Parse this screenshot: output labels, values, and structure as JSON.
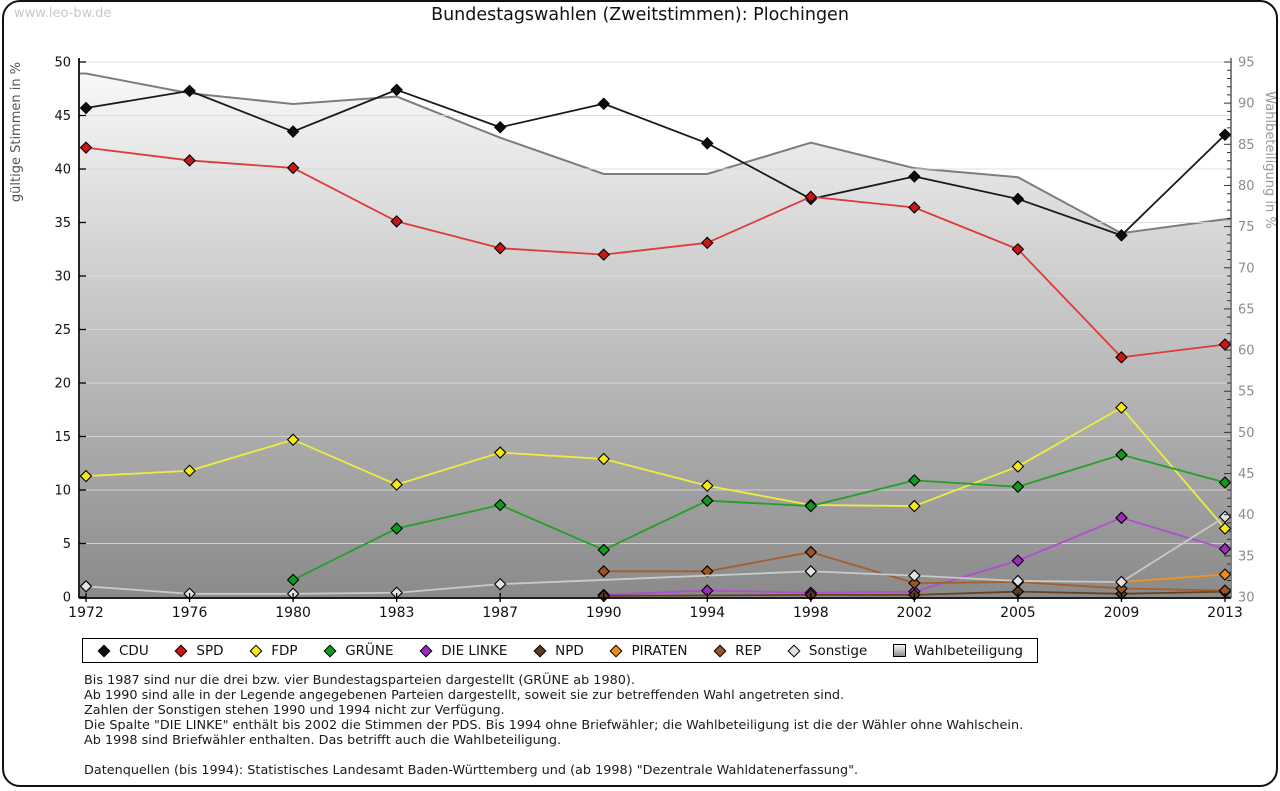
{
  "watermark": "www.leo-bw.de",
  "title": "Bundestagswahlen (Zweitstimmen): Plochingen",
  "chart_data": {
    "type": "line",
    "x": [
      1972,
      1976,
      1980,
      1983,
      1987,
      1990,
      1994,
      1998,
      2002,
      2005,
      2009,
      2013
    ],
    "y_left": {
      "label": "gültige Stimmen in %",
      "min": 0,
      "max": 50,
      "tick_step": 5
    },
    "y_right": {
      "label": "Wahlbeteiligung in %",
      "min": 30,
      "max": 95,
      "tick_step": 5,
      "minor_tick_step": 1
    },
    "grid": true,
    "series": [
      {
        "name": "CDU",
        "axis": "left",
        "style": "line",
        "color": "#1a1a1a",
        "marker": "#0d0d0d",
        "values": [
          45.7,
          47.3,
          43.5,
          47.4,
          43.9,
          46.1,
          42.4,
          37.2,
          39.3,
          37.2,
          33.8,
          43.2
        ]
      },
      {
        "name": "SPD",
        "axis": "left",
        "style": "line",
        "color": "#de3b3b",
        "marker": "#cc1616",
        "values": [
          42.0,
          40.8,
          40.1,
          35.1,
          32.6,
          32.0,
          33.1,
          37.4,
          36.4,
          32.5,
          22.4,
          23.6
        ]
      },
      {
        "name": "FDP",
        "axis": "left",
        "style": "line",
        "color": "#eded3e",
        "marker": "#f7e81c",
        "values": [
          11.3,
          11.8,
          14.7,
          10.5,
          13.5,
          12.9,
          10.4,
          8.6,
          8.5,
          12.2,
          17.7,
          6.4
        ]
      },
      {
        "name": "GRÜNE",
        "axis": "left",
        "style": "line",
        "color": "#22a122",
        "marker": "#12991f",
        "values": [
          null,
          null,
          1.6,
          6.4,
          8.6,
          4.4,
          9.0,
          8.5,
          10.9,
          10.3,
          13.3,
          10.7
        ]
      },
      {
        "name": "DIE LINKE",
        "axis": "left",
        "style": "line",
        "color": "#af4fd1",
        "marker": "#9c2bbf",
        "values": [
          null,
          null,
          null,
          null,
          null,
          0.2,
          0.6,
          0.4,
          0.5,
          3.4,
          7.4,
          4.5
        ]
      },
      {
        "name": "NPD",
        "axis": "left",
        "style": "line",
        "color": "#654321",
        "marker": "#5c3d20",
        "values": [
          null,
          null,
          null,
          null,
          null,
          0.1,
          null,
          0.2,
          0.2,
          0.5,
          0.3,
          0.5
        ]
      },
      {
        "name": "PIRATEN",
        "axis": "left",
        "style": "line",
        "color": "#f0941f",
        "marker": "#ed8d15",
        "values": [
          null,
          null,
          null,
          null,
          null,
          null,
          null,
          null,
          null,
          null,
          1.4,
          2.1
        ]
      },
      {
        "name": "REP",
        "axis": "left",
        "style": "line",
        "color": "#a65e2e",
        "marker": "#9b5426",
        "values": [
          null,
          null,
          null,
          null,
          null,
          2.4,
          2.4,
          4.2,
          1.3,
          1.4,
          0.8,
          0.6
        ]
      },
      {
        "name": "Sonstige",
        "axis": "left",
        "style": "line",
        "color": "#c9c9c9",
        "marker": "#e3e3e3",
        "values": [
          1.0,
          0.3,
          0.3,
          0.4,
          1.2,
          null,
          null,
          2.4,
          2.0,
          1.5,
          1.4,
          7.5
        ]
      },
      {
        "name": "Wahlbeteiligung",
        "axis": "right",
        "style": "area",
        "color": "#7d7d7d",
        "fill_top": "#fbfbfb",
        "fill_bottom": "#8a8a8a",
        "values": [
          93.6,
          91.2,
          89.9,
          90.8,
          85.8,
          81.4,
          81.4,
          85.2,
          82.1,
          81.0,
          74.2,
          75.9
        ]
      }
    ]
  },
  "legend": {
    "items": [
      {
        "label": "CDU",
        "shape": "diamond",
        "color": "#0d0d0d"
      },
      {
        "label": "SPD",
        "shape": "diamond",
        "color": "#cc1616"
      },
      {
        "label": "FDP",
        "shape": "diamond",
        "color": "#f7e81c"
      },
      {
        "label": "GRÜNE",
        "shape": "diamond",
        "color": "#12991f"
      },
      {
        "label": "DIE LINKE",
        "shape": "diamond",
        "color": "#9c2bbf"
      },
      {
        "label": "NPD",
        "shape": "diamond",
        "color": "#5c3d20"
      },
      {
        "label": "PIRATEN",
        "shape": "diamond",
        "color": "#ed8d15"
      },
      {
        "label": "REP",
        "shape": "diamond",
        "color": "#9b5426"
      },
      {
        "label": "Sonstige",
        "shape": "diamond",
        "color": "#e3e3e3"
      },
      {
        "label": "Wahlbeteiligung",
        "shape": "square-gradient",
        "color": "#b5b5b5"
      }
    ]
  },
  "notes": [
    "Bis 1987 sind nur die drei bzw. vier Bundestagsparteien dargestellt (GRÜNE ab 1980).",
    "Ab 1990 sind alle in der Legende angegebenen Parteien dargestellt, soweit sie zur betreffenden Wahl angetreten sind.",
    "Zahlen der Sonstigen stehen 1990 und 1994 nicht zur Verfügung.",
    "Die Spalte \"DIE LINKE\" enthält bis 2002 die Stimmen der PDS. Bis 1994 ohne Briefwähler; die Wahlbeteiligung ist die der Wähler ohne Wahlschein.",
    "Ab 1998 sind Briefwähler enthalten. Das betrifft auch die Wahlbeteiligung."
  ],
  "source": "Datenquellen (bis 1994): Statistisches Landesamt Baden-Württemberg und (ab 1998) \"Dezentrale Wahldatenerfassung\"."
}
